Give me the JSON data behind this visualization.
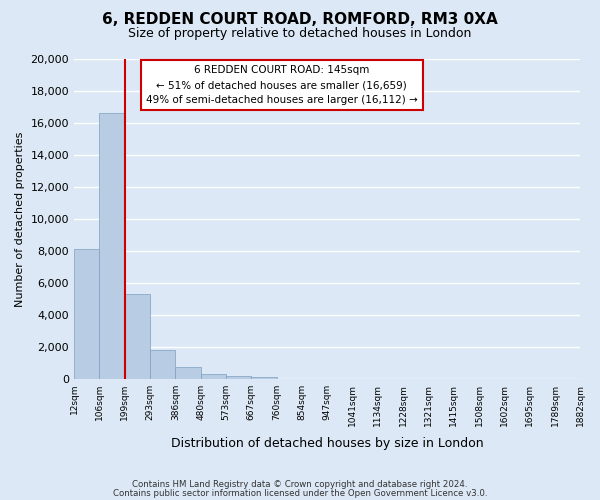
{
  "title": "6, REDDEN COURT ROAD, ROMFORD, RM3 0XA",
  "subtitle": "Size of property relative to detached houses in London",
  "xlabel": "Distribution of detached houses by size in London",
  "ylabel": "Number of detached properties",
  "bar_values": [
    8100,
    16600,
    5300,
    1800,
    750,
    300,
    200,
    100,
    0,
    0,
    0,
    0,
    0,
    0,
    0,
    0,
    0,
    0,
    0,
    0
  ],
  "categories": [
    "12sqm",
    "106sqm",
    "199sqm",
    "293sqm",
    "386sqm",
    "480sqm",
    "573sqm",
    "667sqm",
    "760sqm",
    "854sqm",
    "947sqm",
    "1041sqm",
    "1134sqm",
    "1228sqm",
    "1321sqm",
    "1415sqm",
    "1508sqm",
    "1602sqm",
    "1695sqm",
    "1789sqm",
    "1882sqm"
  ],
  "bar_color": "#b8cce4",
  "bar_edge_color": "#7f9fbf",
  "vline_color": "#cc0000",
  "ylim": [
    0,
    20000
  ],
  "yticks": [
    0,
    2000,
    4000,
    6000,
    8000,
    10000,
    12000,
    14000,
    16000,
    18000,
    20000
  ],
  "annotation_title": "6 REDDEN COURT ROAD: 145sqm",
  "annotation_line1": "← 51% of detached houses are smaller (16,659)",
  "annotation_line2": "49% of semi-detached houses are larger (16,112) →",
  "annotation_box_color": "#ffffff",
  "annotation_box_edge": "#cc0000",
  "footer1": "Contains HM Land Registry data © Crown copyright and database right 2024.",
  "footer2": "Contains public sector information licensed under the Open Government Licence v3.0.",
  "bg_color": "#dce8f5",
  "plot_bg_color": "#dce8f5",
  "grid_color": "#ffffff"
}
